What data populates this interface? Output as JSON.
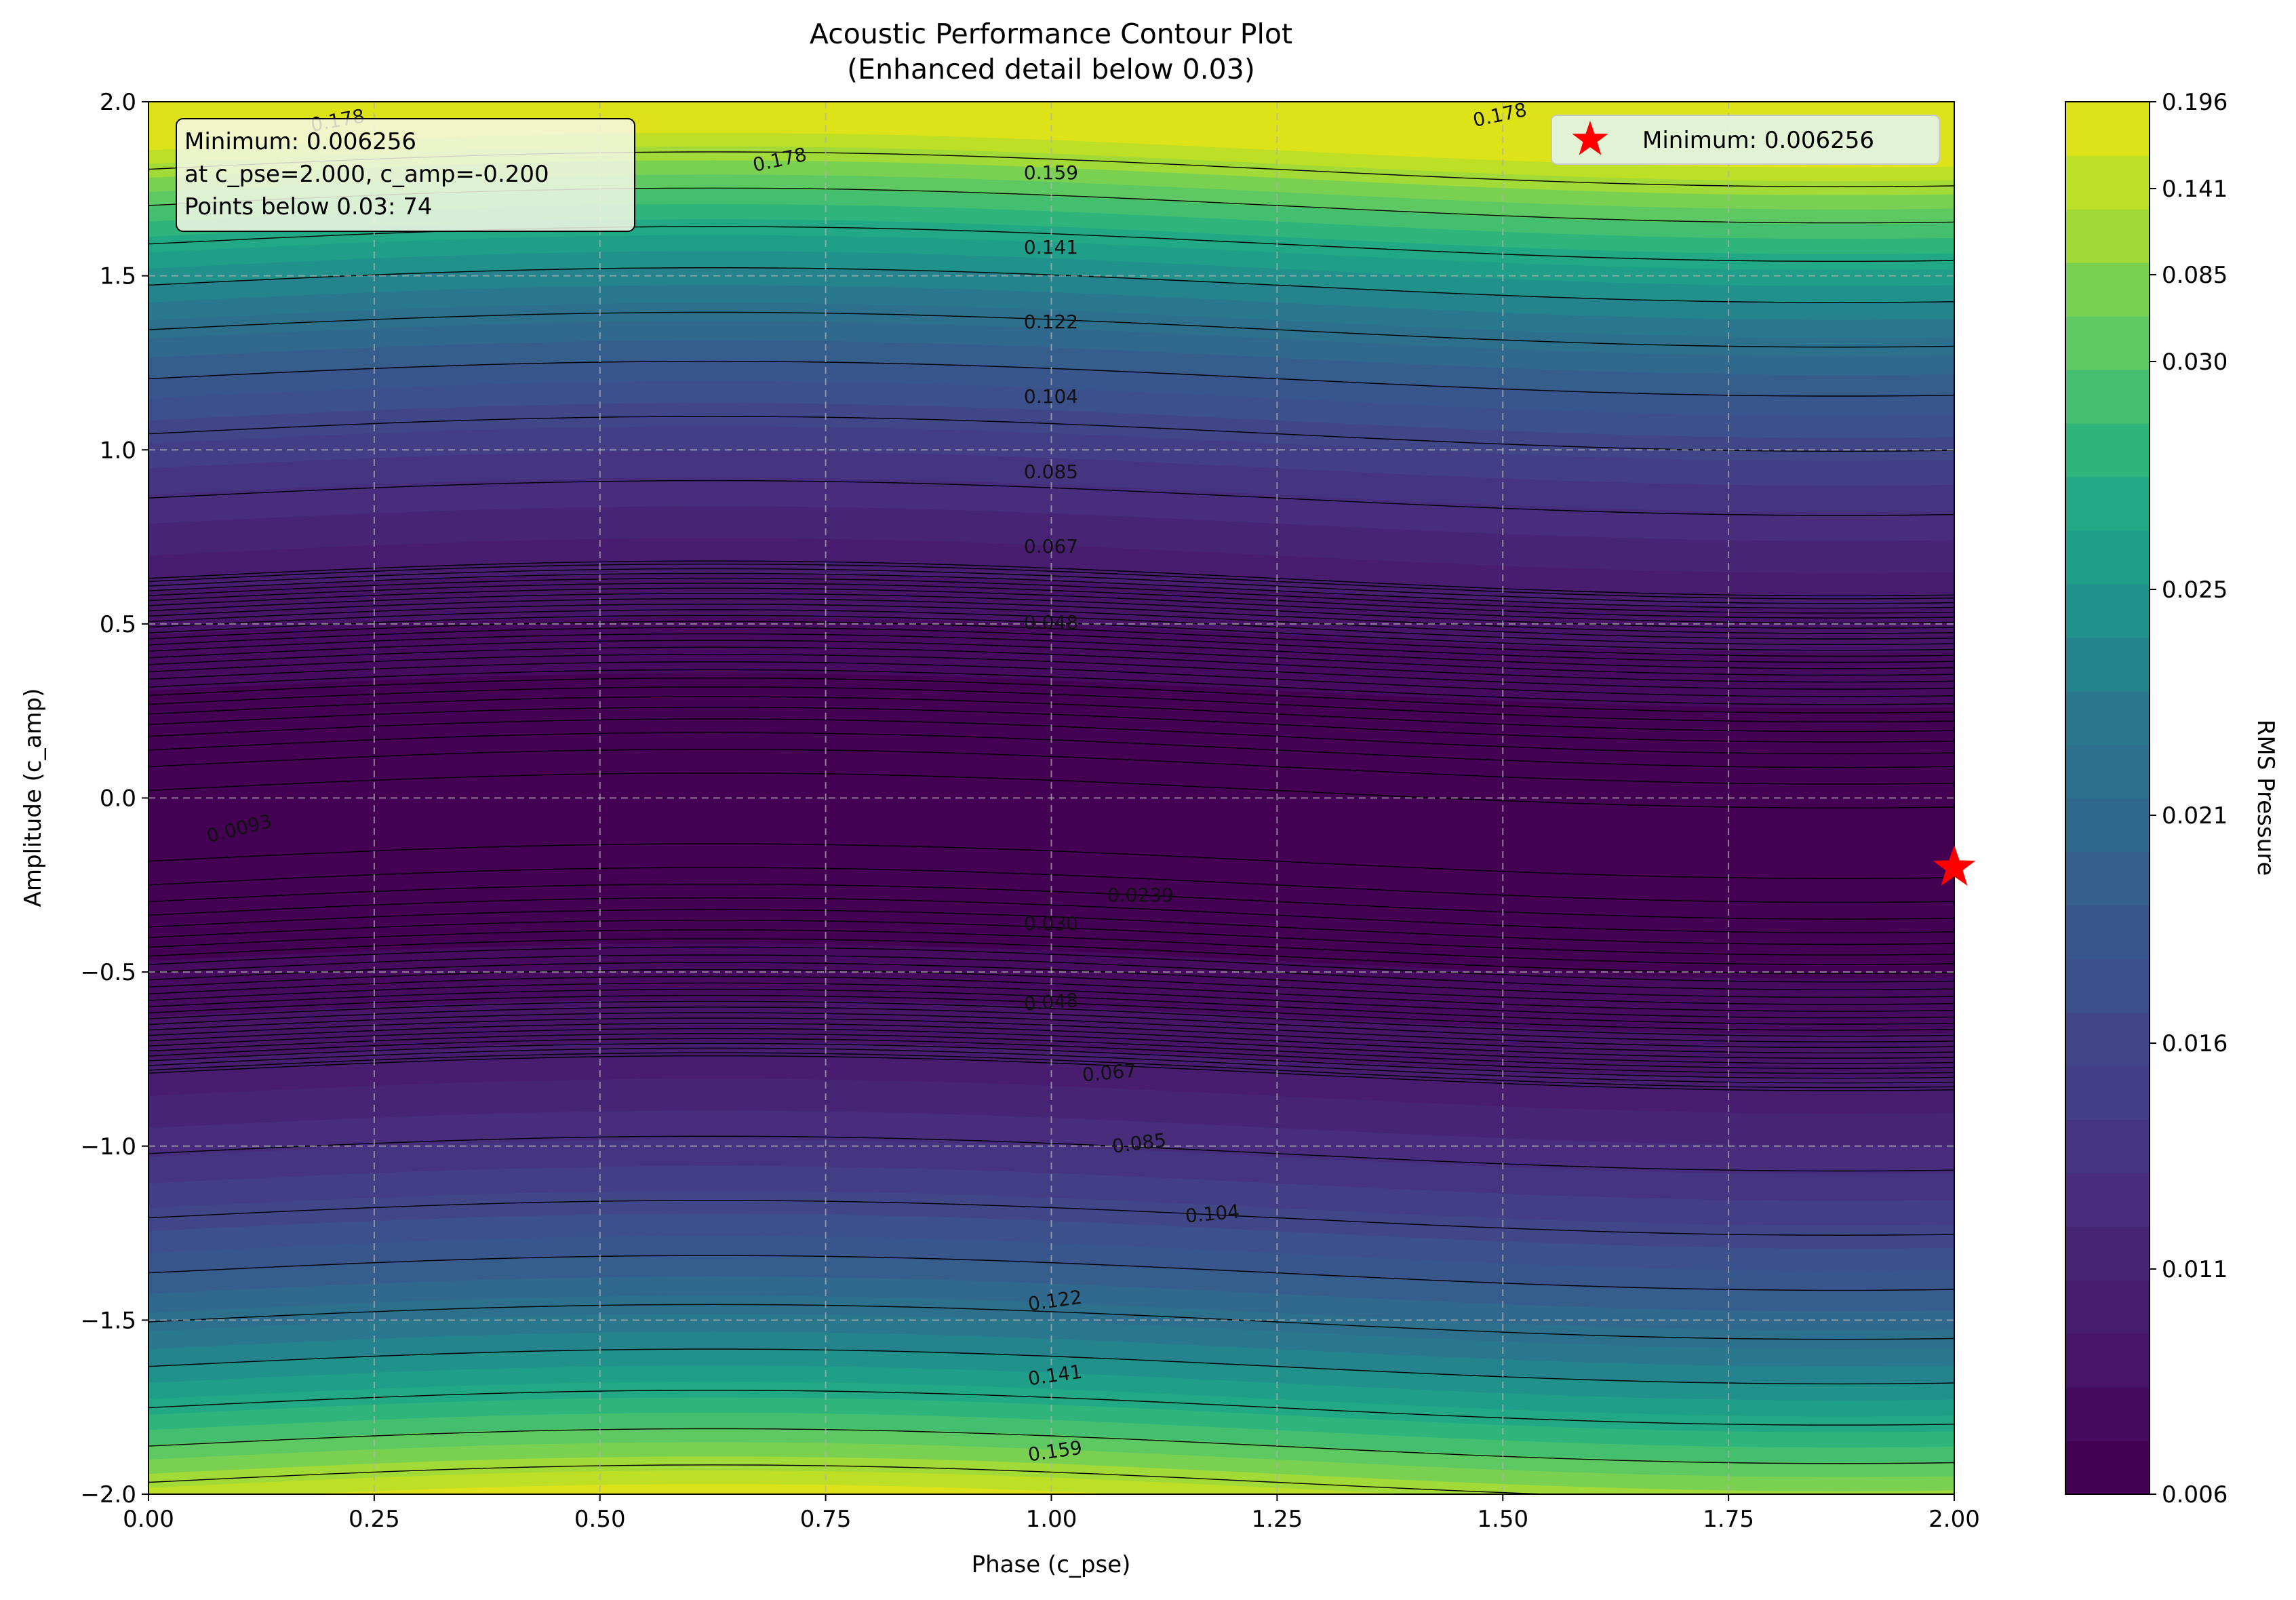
{
  "chart_data": {
    "type": "contour",
    "title": "Acoustic Performance Contour Plot",
    "subtitle": "(Enhanced detail below 0.03)",
    "xlabel": "Phase (c_pse)",
    "ylabel": "Amplitude (c_amp)",
    "xlim": [
      0.0,
      2.0
    ],
    "ylim": [
      -2.0,
      2.0
    ],
    "x_ticks": [
      "0.00",
      "0.25",
      "0.50",
      "0.75",
      "1.00",
      "1.25",
      "1.50",
      "1.75",
      "2.00"
    ],
    "y_ticks": [
      "−2.0",
      "−1.5",
      "−1.0",
      "−0.5",
      "0.0",
      "0.5",
      "1.0",
      "1.5",
      "2.0"
    ],
    "grid": true,
    "colorbar": {
      "label": "RMS Pressure",
      "tick_labels": [
        "0.006",
        "0.011",
        "0.016",
        "0.021",
        "0.025",
        "0.030",
        "0.085",
        "0.141",
        "0.196"
      ],
      "colors": [
        "#440154",
        "#460b5e",
        "#481467",
        "#481d6f",
        "#482475",
        "#472d7b",
        "#453581",
        "#433e85",
        "#404688",
        "#3c508b",
        "#39568c",
        "#355e8d",
        "#31688e",
        "#2d708e",
        "#2a788e",
        "#25838e",
        "#21918c",
        "#1f9e89",
        "#22a884",
        "#2fb47c",
        "#44bf70",
        "#5ec962",
        "#7ad151",
        "#a2da37",
        "#bddf26",
        "#dde318"
      ]
    },
    "contour_levels": [
      "0.0093",
      "0.0239",
      "0.030",
      "0.048",
      "0.067",
      "0.085",
      "0.104",
      "0.122",
      "0.141",
      "0.159",
      "0.178"
    ],
    "minimum": {
      "value": 0.006256,
      "c_pse": 2.0,
      "c_amp": -0.2
    },
    "annotation_lines": [
      "Minimum: 0.006256",
      "at c_pse=2.000, c_amp=-0.200",
      "Points below 0.03: 74"
    ],
    "legend": {
      "label": "Minimum: 0.006256",
      "placement": "top-right",
      "marker": "red star"
    },
    "contour_labels_upper": [
      "0.178",
      "0.178",
      "0.178",
      "0.159",
      "0.141",
      "0.122",
      "0.104",
      "0.085",
      "0.067",
      "0.048"
    ],
    "contour_labels_lower": [
      "0.048",
      "0.067",
      "0.085",
      "0.104",
      "0.122",
      "0.141",
      "0.159"
    ],
    "contour_labels_center": [
      "0.0093",
      "0.0239",
      "0.030"
    ]
  }
}
